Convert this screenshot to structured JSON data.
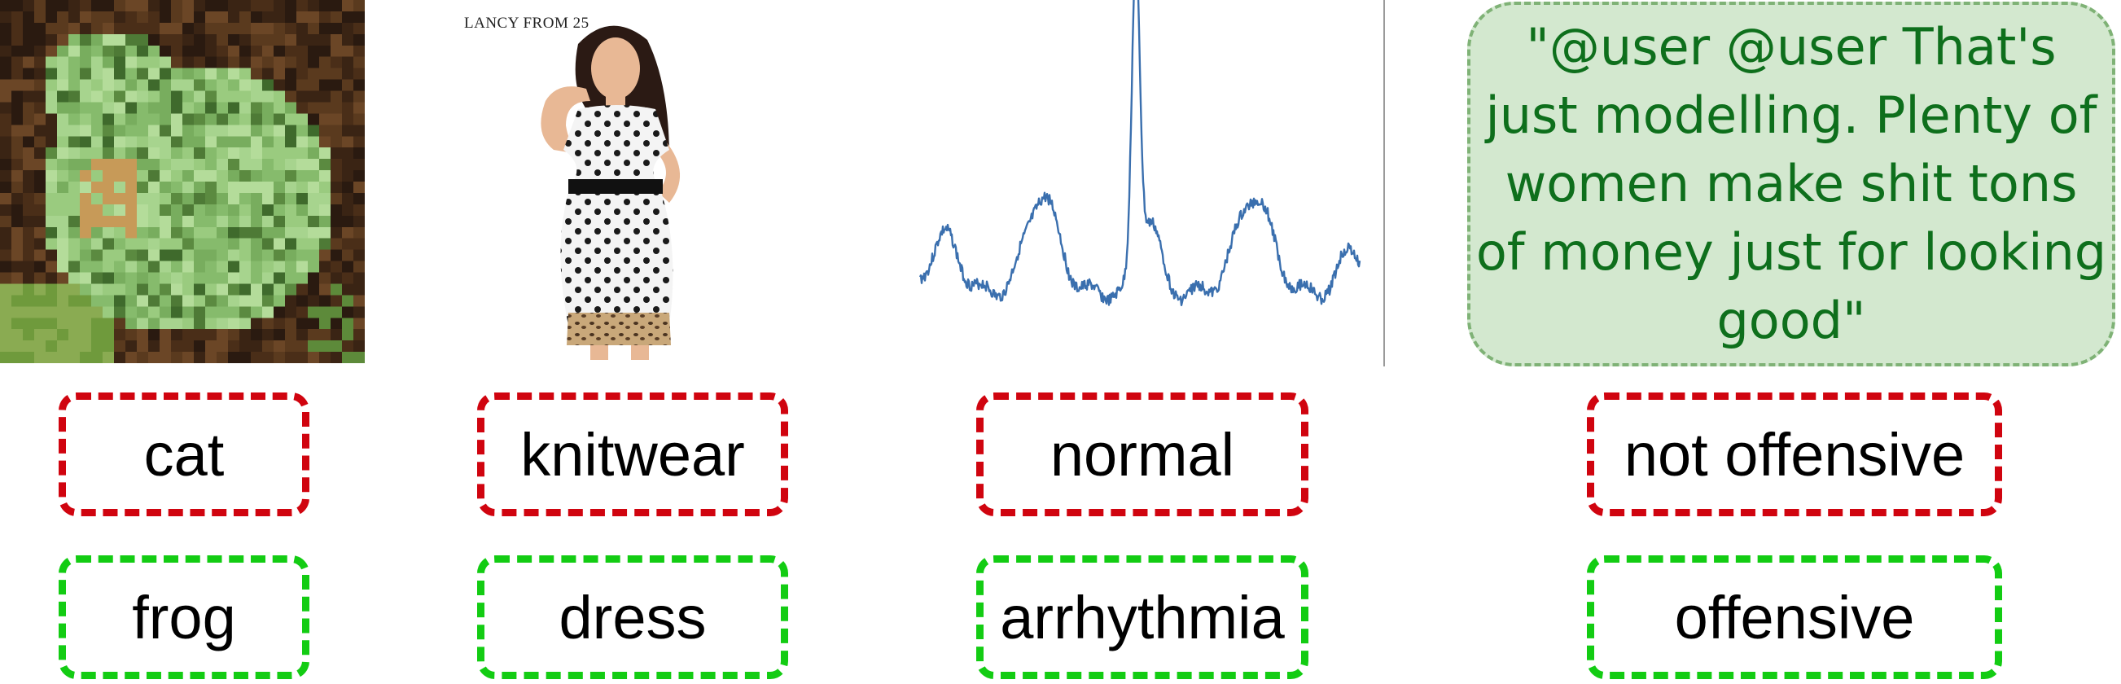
{
  "panels": [
    {
      "modality": "image",
      "predicted_label": "cat",
      "true_label": "frog"
    },
    {
      "modality": "image",
      "watermark": "LANCY FROM 25",
      "predicted_label": "knitwear",
      "true_label": "dress"
    },
    {
      "modality": "ecg-signal",
      "predicted_label": "normal",
      "true_label": "arrhythmia"
    },
    {
      "modality": "text",
      "tweet": "\"@user @user That's just modelling. Plenty of women make shit tons of money just for looking good\"",
      "predicted_label": "not offensive",
      "true_label": "offensive"
    }
  ],
  "colors": {
    "predicted_border": "#d0040f",
    "true_border": "#13cc13",
    "tweet_fill": "#d3e8cf",
    "tweet_border": "#7fb276",
    "tweet_text": "#0e6f1c",
    "signal_line": "#3a6fae"
  }
}
